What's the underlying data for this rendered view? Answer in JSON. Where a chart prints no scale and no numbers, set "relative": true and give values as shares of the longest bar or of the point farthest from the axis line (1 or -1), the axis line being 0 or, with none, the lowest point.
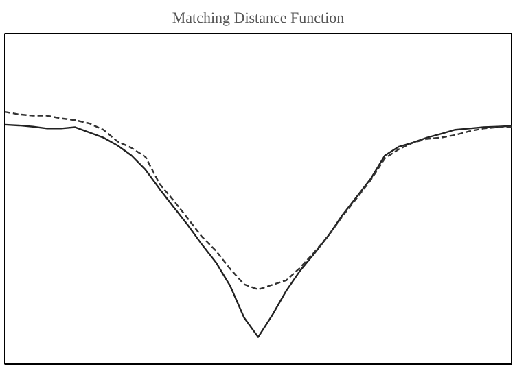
{
  "chart_data": {
    "type": "line",
    "title": "Matching Distance Function",
    "relative": true,
    "grid": false,
    "marker": "none",
    "categories": [
      null,
      null,
      null,
      null,
      null,
      null,
      null,
      null,
      null,
      null,
      null,
      null,
      null,
      null,
      null,
      null,
      null,
      null,
      null,
      null,
      null,
      null,
      null,
      null,
      null,
      null,
      null,
      null,
      null,
      null,
      null,
      null,
      null,
      null,
      null,
      null,
      null
    ],
    "series": [
      {
        "color": "#222222",
        "line_style": "solid",
        "values": [
          0.949,
          0.946,
          0.941,
          0.934,
          0.934,
          0.939,
          0.918,
          0.898,
          0.867,
          0.827,
          0.77,
          0.694,
          0.622,
          0.551,
          0.474,
          0.403,
          0.311,
          0.184,
          0.107,
          0.194,
          0.291,
          0.372,
          0.439,
          0.51,
          0.592,
          0.663,
          0.735,
          0.827,
          0.862,
          0.878,
          0.898,
          0.913,
          0.929,
          0.934,
          0.939,
          0.941,
          0.944
        ]
      },
      {
        "color": "#333333",
        "line_style": "dashed",
        "values": [
          1,
          0.99,
          0.985,
          0.985,
          0.974,
          0.967,
          0.954,
          0.929,
          0.883,
          0.857,
          0.821,
          0.714,
          0.648,
          0.577,
          0.505,
          0.449,
          0.378,
          0.316,
          0.296,
          0.314,
          0.332,
          0.383,
          0.444,
          0.51,
          0.587,
          0.658,
          0.73,
          0.816,
          0.852,
          0.878,
          0.893,
          0.898,
          0.908,
          0.923,
          0.934,
          0.939,
          0.939
        ]
      }
    ]
  }
}
